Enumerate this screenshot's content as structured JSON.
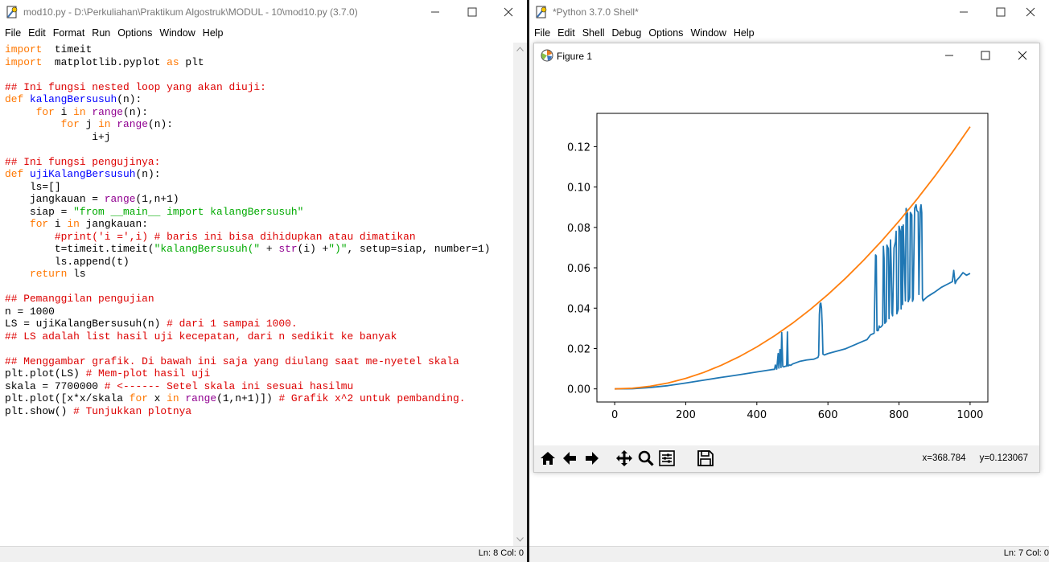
{
  "editor_window": {
    "title": "mod10.py - D:\\Perkuliahan\\Praktikum Algostruk\\MODUL - 10\\mod10.py (3.7.0)",
    "menu": [
      "File",
      "Edit",
      "Format",
      "Run",
      "Options",
      "Window",
      "Help"
    ],
    "status": "Ln: 8   Col: 0",
    "code_lines": [
      [
        [
          "kw",
          "import"
        ],
        [
          "",
          "  timeit"
        ]
      ],
      [
        [
          "kw",
          "import"
        ],
        [
          "",
          "  matplotlib.pyplot "
        ],
        [
          "kw",
          "as"
        ],
        [
          "",
          " plt"
        ]
      ],
      [],
      [
        [
          "cm",
          "## Ini fungsi nested loop yang akan diuji:"
        ]
      ],
      [
        [
          "kw",
          "def"
        ],
        [
          "",
          " "
        ],
        [
          "fn",
          "kalangBersusuh"
        ],
        [
          "",
          "(n):"
        ]
      ],
      [
        [
          "",
          "     "
        ],
        [
          "kw",
          "for"
        ],
        [
          "",
          " i "
        ],
        [
          "kw",
          "in"
        ],
        [
          "",
          " "
        ],
        [
          "bi",
          "range"
        ],
        [
          "",
          "(n):"
        ]
      ],
      [
        [
          "",
          "         "
        ],
        [
          "kw",
          "for"
        ],
        [
          "",
          " j "
        ],
        [
          "kw",
          "in"
        ],
        [
          "",
          " "
        ],
        [
          "bi",
          "range"
        ],
        [
          "",
          "(n):"
        ]
      ],
      [
        [
          "",
          "              i+j"
        ]
      ],
      [],
      [
        [
          "cm",
          "## Ini fungsi pengujinya:"
        ]
      ],
      [
        [
          "kw",
          "def"
        ],
        [
          "",
          " "
        ],
        [
          "fn",
          "ujiKalangBersusuh"
        ],
        [
          "",
          "(n):"
        ]
      ],
      [
        [
          "",
          "    ls=[]"
        ]
      ],
      [
        [
          "",
          "    jangkauan = "
        ],
        [
          "bi",
          "range"
        ],
        [
          "",
          "(1,n+1)"
        ]
      ],
      [
        [
          "",
          "    siap = "
        ],
        [
          "st",
          "\"from __main__ import kalangBersusuh\""
        ]
      ],
      [
        [
          "",
          "    "
        ],
        [
          "kw",
          "for"
        ],
        [
          "",
          " i "
        ],
        [
          "kw",
          "in"
        ],
        [
          "",
          " jangkauan:"
        ]
      ],
      [
        [
          "",
          "        "
        ],
        [
          "cm",
          "#print('i =',i) # baris ini bisa dihidupkan atau dimatikan"
        ]
      ],
      [
        [
          "",
          "        t=timeit.timeit("
        ],
        [
          "st",
          "\"kalangBersusuh(\""
        ],
        [
          "",
          " + "
        ],
        [
          "bi",
          "str"
        ],
        [
          "",
          "(i) +"
        ],
        [
          "st",
          "\")\""
        ],
        [
          "",
          ", setup=siap, number=1)"
        ]
      ],
      [
        [
          "",
          "        ls.append(t)"
        ]
      ],
      [
        [
          "",
          "    "
        ],
        [
          "kw",
          "return"
        ],
        [
          "",
          " ls"
        ]
      ],
      [],
      [
        [
          "cm",
          "## Pemanggilan pengujian"
        ]
      ],
      [
        [
          "",
          "n = 1000"
        ]
      ],
      [
        [
          "",
          "LS = ujiKalangBersusuh(n) "
        ],
        [
          "cm",
          "# dari 1 sampai 1000."
        ]
      ],
      [
        [
          "cm",
          "## LS adalah list hasil uji kecepatan, dari n sedikit ke banyak"
        ]
      ],
      [],
      [
        [
          "cm",
          "## Menggambar grafik. Di bawah ini saja yang diulang saat me-nyetel skala"
        ]
      ],
      [
        [
          "",
          "plt.plot(LS) "
        ],
        [
          "cm",
          "# Mem-plot hasil uji"
        ]
      ],
      [
        [
          "",
          "skala = 7700000 "
        ],
        [
          "cm",
          "# <------ Setel skala ini sesuai hasilmu"
        ]
      ],
      [
        [
          "",
          "plt.plot([x*x/skala "
        ],
        [
          "kw",
          "for"
        ],
        [
          "",
          " x "
        ],
        [
          "kw",
          "in"
        ],
        [
          "",
          " "
        ],
        [
          "bi",
          "range"
        ],
        [
          "",
          "(1,n+1)]) "
        ],
        [
          "cm",
          "# Grafik x^2 untuk pembanding."
        ]
      ],
      [
        [
          "",
          "plt.show() "
        ],
        [
          "cm",
          "# Tunjukkan plotnya"
        ]
      ]
    ],
    "colors": {
      "keyword": "#ff7700",
      "builtin": "#900090",
      "definition": "#0000ff",
      "string": "#00aa00",
      "comment": "#dd0000"
    }
  },
  "shell_window": {
    "title": "*Python 3.7.0 Shell*",
    "menu": [
      "File",
      "Edit",
      "Shell",
      "Debug",
      "Options",
      "Window",
      "Help"
    ],
    "status": "Ln: 7   Col: 0"
  },
  "figure_window": {
    "title": "Figure 1",
    "toolbar_icons": [
      "home-icon",
      "back-arrow-icon",
      "forward-arrow-icon",
      "pan-icon",
      "zoom-icon",
      "subplots-icon",
      "save-icon"
    ],
    "coords_x": "x=368.784",
    "coords_y": "y=0.123067"
  },
  "chart_data": {
    "type": "line",
    "title": "",
    "xlabel": "",
    "ylabel": "",
    "xlim": [
      -50,
      1050
    ],
    "ylim": [
      -0.0065,
      0.1365
    ],
    "xticks": [
      0,
      200,
      400,
      600,
      800,
      1000
    ],
    "yticks": [
      0.0,
      0.02,
      0.04,
      0.06,
      0.08,
      0.1,
      0.12
    ],
    "ytick_labels": [
      "0.00",
      "0.02",
      "0.04",
      "0.06",
      "0.08",
      "0.10",
      "0.12"
    ],
    "grid": false,
    "series": [
      {
        "color": "#1f77b4",
        "x": [
          0,
          50,
          100,
          150,
          200,
          250,
          300,
          320,
          350,
          400,
          440,
          450,
          452,
          456,
          460,
          462,
          465,
          468,
          470,
          473,
          476,
          480,
          484,
          486,
          488,
          490,
          492,
          496,
          500,
          520,
          540,
          560,
          572,
          574,
          576,
          578,
          580,
          582,
          584,
          586,
          590,
          600,
          650,
          700,
          710,
          720,
          730,
          734,
          736,
          738,
          740,
          742,
          744,
          746,
          750,
          754,
          756,
          758,
          760,
          764,
          766,
          770,
          772,
          776,
          778,
          780,
          782,
          786,
          790,
          792,
          794,
          798,
          800,
          804,
          806,
          808,
          810,
          812,
          814,
          818,
          820,
          824,
          826,
          830,
          832,
          836,
          838,
          840,
          844,
          848,
          850,
          854,
          856,
          860,
          862,
          864,
          866,
          868,
          870,
          880,
          900,
          920,
          940,
          950,
          954,
          958,
          962,
          970,
          980,
          990,
          1000
        ],
        "y": [
          0,
          0.0001,
          0.0007,
          0.0016,
          0.0029,
          0.0043,
          0.0057,
          0.0062,
          0.007,
          0.0084,
          0.0095,
          0.0097,
          0.0118,
          0.0098,
          0.0175,
          0.0103,
          0.0195,
          0.0106,
          0.0279,
          0.0111,
          0.0109,
          0.0112,
          0.0113,
          0.0282,
          0.0114,
          0.0116,
          0.0118,
          0.0117,
          0.0123,
          0.0136,
          0.0143,
          0.0147,
          0.0156,
          0.0166,
          0.0368,
          0.0421,
          0.0425,
          0.0398,
          0.0312,
          0.0172,
          0.0168,
          0.0175,
          0.0199,
          0.0237,
          0.0244,
          0.0268,
          0.0276,
          0.0664,
          0.0658,
          0.0289,
          0.0288,
          0.0291,
          0.0312,
          0.0304,
          0.0308,
          0.0318,
          0.0706,
          0.0648,
          0.0325,
          0.0334,
          0.0712,
          0.0695,
          0.0348,
          0.0738,
          0.0614,
          0.0376,
          0.0362,
          0.0698,
          0.0729,
          0.0781,
          0.0372,
          0.0396,
          0.0806,
          0.0779,
          0.0396,
          0.0805,
          0.0418,
          0.0812,
          0.0694,
          0.0436,
          0.0894,
          0.0868,
          0.0432,
          0.0452,
          0.0874,
          0.0862,
          0.0434,
          0.0446,
          0.0895,
          0.0912,
          0.0884,
          0.0876,
          0.0468,
          0.0894,
          0.0912,
          0.0873,
          0.0448,
          0.0436,
          0.0441,
          0.0457,
          0.0479,
          0.0504,
          0.0522,
          0.0531,
          0.0587,
          0.0522,
          0.0538,
          0.0553,
          0.0576,
          0.0563,
          0.0572
        ]
      },
      {
        "color": "#ff7f0e",
        "x": [
          0,
          50,
          100,
          150,
          200,
          250,
          300,
          350,
          400,
          450,
          500,
          550,
          600,
          650,
          700,
          750,
          800,
          850,
          900,
          950,
          1000
        ],
        "y": [
          0,
          0.000325,
          0.0013,
          0.00292,
          0.0052,
          0.00812,
          0.01169,
          0.01591,
          0.02078,
          0.0263,
          0.03247,
          0.03929,
          0.04675,
          0.05487,
          0.06364,
          0.07305,
          0.08312,
          0.09383,
          0.10519,
          0.11721,
          0.12987
        ]
      }
    ]
  }
}
